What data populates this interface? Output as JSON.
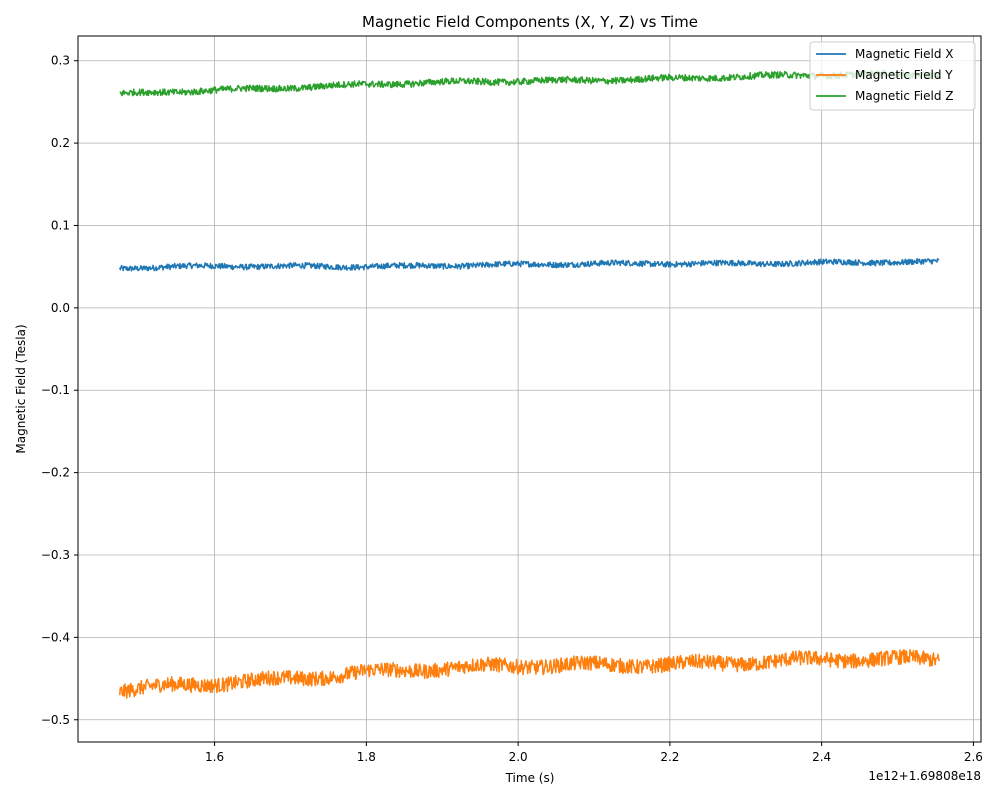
{
  "chart_data": {
    "type": "line",
    "title": "Magnetic Field Components (X, Y, Z) vs Time",
    "xlabel": "Time (s)",
    "ylabel": "Magnetic Field (Tesla)",
    "x_offset_label": "1e12+1.69808e18",
    "xlim": [
      1.42,
      2.61
    ],
    "ylim": [
      -0.527,
      0.33
    ],
    "x_ticks": [
      {
        "value": 1.6,
        "label": "1.6"
      },
      {
        "value": 1.8,
        "label": "1.8"
      },
      {
        "value": 2.0,
        "label": "2.0"
      },
      {
        "value": 2.2,
        "label": "2.2"
      },
      {
        "value": 2.4,
        "label": "2.4"
      },
      {
        "value": 2.6,
        "label": "2.6"
      }
    ],
    "y_ticks": [
      {
        "value": 0.3,
        "label": "0.3"
      },
      {
        "value": 0.2,
        "label": "0.2"
      },
      {
        "value": 0.1,
        "label": "0.1"
      },
      {
        "value": 0.0,
        "label": "0.0"
      },
      {
        "value": -0.1,
        "label": "−0.1"
      },
      {
        "value": -0.2,
        "label": "−0.2"
      },
      {
        "value": -0.3,
        "label": "−0.3"
      },
      {
        "value": -0.4,
        "label": "−0.4"
      },
      {
        "value": -0.5,
        "label": "−0.5"
      }
    ],
    "grid": true,
    "legend_position": "top-right",
    "series": [
      {
        "name": "Magnetic Field X",
        "color": "#1f77b4",
        "x": [
          1.475,
          1.6,
          1.8,
          2.0,
          2.2,
          2.4,
          2.555
        ],
        "y": [
          0.048,
          0.05,
          0.051,
          0.052,
          0.054,
          0.055,
          0.055
        ],
        "noise": 0.0035
      },
      {
        "name": "Magnetic Field Y",
        "color": "#ff7f0e",
        "x": [
          1.475,
          1.6,
          1.8,
          2.0,
          2.2,
          2.4,
          2.555
        ],
        "y": [
          -0.466,
          -0.456,
          -0.441,
          -0.436,
          -0.431,
          -0.428,
          -0.428
        ],
        "noise": 0.009
      },
      {
        "name": "Magnetic Field Z",
        "color": "#2ca02c",
        "x": [
          1.475,
          1.6,
          1.8,
          2.0,
          2.2,
          2.4,
          2.555
        ],
        "y": [
          0.259,
          0.265,
          0.271,
          0.275,
          0.279,
          0.282,
          0.284
        ],
        "noise": 0.004
      }
    ]
  }
}
